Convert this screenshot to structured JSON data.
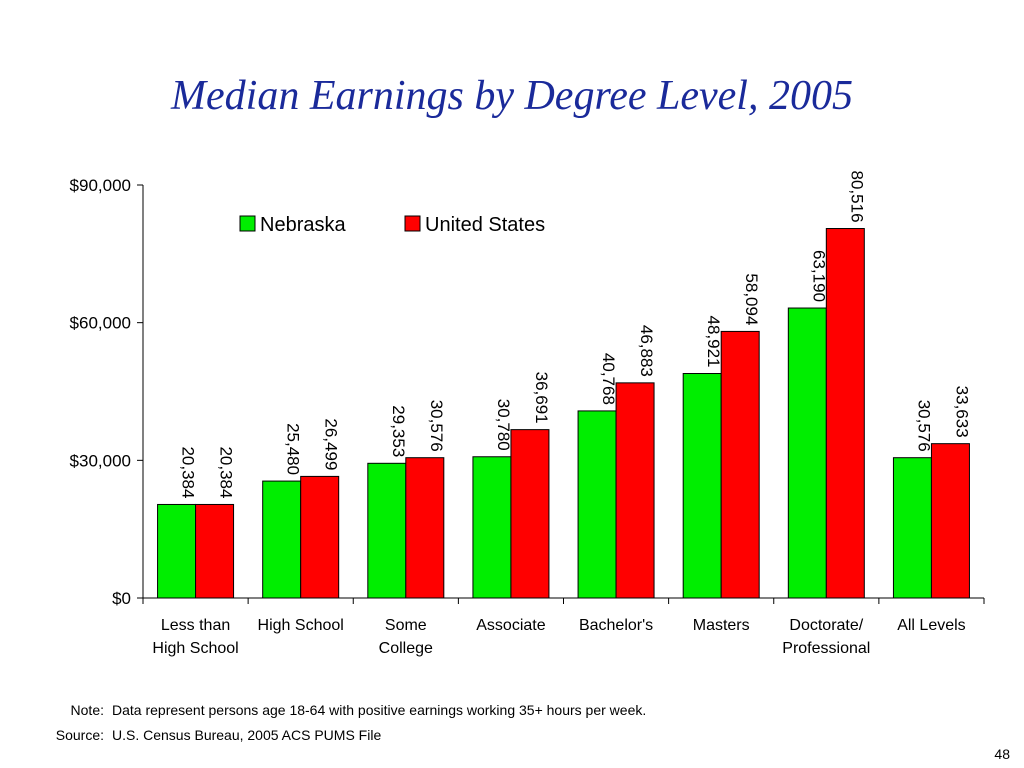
{
  "slide": {
    "title": "Median Earnings by Degree Level, 2005",
    "note_label": "Note:",
    "note_text": "Data represent persons age 18-64 with positive earnings working 35+ hours per week.",
    "source_label": "Source:",
    "source_text": "U.S. Census Bureau, 2005 ACS PUMS File",
    "page_number": "48"
  },
  "chart_data": {
    "type": "bar",
    "title": "Median Earnings by Degree Level, 2005",
    "xlabel": "",
    "ylabel": "",
    "ylim": [
      0,
      90000
    ],
    "yticks": [
      0,
      30000,
      60000,
      90000
    ],
    "ytick_labels": [
      "$0",
      "$30,000",
      "$60,000",
      "$90,000"
    ],
    "grid": false,
    "legend_position": "top-center",
    "categories": [
      [
        "Less than",
        "High School"
      ],
      [
        "High School"
      ],
      [
        "Some",
        "College"
      ],
      [
        "Associate"
      ],
      [
        "Bachelor's"
      ],
      [
        "Masters"
      ],
      [
        "Doctorate/",
        "Professional"
      ],
      [
        "All Levels"
      ]
    ],
    "series": [
      {
        "name": "Nebraska",
        "color": "#00ee00",
        "values": [
          20384,
          25480,
          29353,
          30780,
          40768,
          48921,
          63190,
          30576
        ],
        "labels": [
          "20,384",
          "25,480",
          "29,353",
          "30,780",
          "40,768",
          "48,921",
          "63,190",
          "30,576"
        ]
      },
      {
        "name": "United States",
        "color": "#ff0000",
        "values": [
          20384,
          26499,
          30576,
          36691,
          46883,
          58094,
          80516,
          33633
        ],
        "labels": [
          "20,384",
          "26,499",
          "30,576",
          "36,691",
          "46,883",
          "58,094",
          "80,516",
          "33,633"
        ]
      }
    ]
  }
}
